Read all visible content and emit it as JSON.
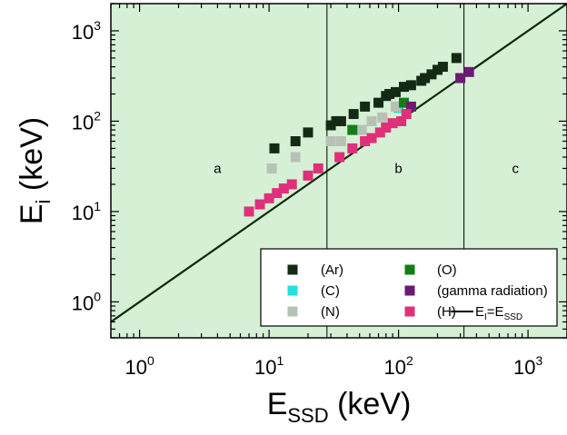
{
  "chart_data": {
    "type": "scatter",
    "xscale": "log",
    "yscale": "log",
    "xlim": [
      0.6,
      2000
    ],
    "ylim": [
      0.4,
      2000
    ],
    "grid": false,
    "background_color": "#d6f0d6",
    "xlabel": {
      "main": "E",
      "sub": "SSD",
      "rest": " (keV)"
    },
    "ylabel": {
      "main": "E",
      "sub": "i",
      "rest": " (keV)"
    },
    "x_ticks": [
      {
        "value": 1,
        "base": "10",
        "exp": "0"
      },
      {
        "value": 10,
        "base": "10",
        "exp": "1"
      },
      {
        "value": 100,
        "base": "10",
        "exp": "2"
      },
      {
        "value": 1000,
        "base": "10",
        "exp": "3"
      }
    ],
    "y_ticks": [
      {
        "value": 1,
        "base": "10",
        "exp": "0"
      },
      {
        "value": 10,
        "base": "10",
        "exp": "1"
      },
      {
        "value": 100,
        "base": "10",
        "exp": "2"
      },
      {
        "value": 1000,
        "base": "10",
        "exp": "3"
      }
    ],
    "vertical_lines": [
      28,
      320
    ],
    "region_labels": [
      {
        "text": "a",
        "x": 4,
        "y": 30
      },
      {
        "text": "b",
        "x": 100,
        "y": 30
      },
      {
        "text": "c",
        "x": 800,
        "y": 30
      }
    ],
    "reference_line": {
      "label_main": "E",
      "label_sub": "I",
      "label_mid": "=E",
      "label_sub2": "SSD"
    },
    "legend": {
      "placement": "bottom-right",
      "columns": 2
    },
    "series": [
      {
        "name": "(Ar)",
        "color": "#152a15",
        "points": [
          [
            11,
            50
          ],
          [
            16,
            60
          ],
          [
            20,
            75
          ],
          [
            30,
            90
          ],
          [
            33,
            100
          ],
          [
            36,
            100
          ],
          [
            45,
            120
          ],
          [
            55,
            145
          ],
          [
            70,
            160
          ],
          [
            80,
            190
          ],
          [
            85,
            200
          ],
          [
            95,
            210
          ],
          [
            110,
            240
          ],
          [
            125,
            250
          ],
          [
            150,
            280
          ],
          [
            160,
            300
          ],
          [
            180,
            330
          ],
          [
            200,
            370
          ],
          [
            220,
            400
          ],
          [
            280,
            500
          ]
        ]
      },
      {
        "name": "(C)",
        "color": "#22e0e0",
        "points": [
          [
            100,
            140
          ]
        ]
      },
      {
        "name": "(N)",
        "color": "#b7c2b7",
        "points": [
          [
            10.5,
            30
          ],
          [
            16,
            40
          ],
          [
            30,
            60
          ],
          [
            36,
            60
          ],
          [
            47,
            80
          ],
          [
            52,
            80
          ],
          [
            62,
            100
          ],
          [
            75,
            110
          ],
          [
            95,
            145
          ]
        ]
      },
      {
        "name": "(O)",
        "color": "#167c16",
        "points": [
          [
            44,
            80
          ],
          [
            110,
            160
          ]
        ]
      },
      {
        "name": "(gamma radiation)",
        "color": "#6b1a72",
        "points": [
          [
            125,
            145
          ],
          [
            300,
            300
          ],
          [
            350,
            350
          ]
        ]
      },
      {
        "name": "(H)",
        "color": "#e0307a",
        "points": [
          [
            7,
            10
          ],
          [
            8.5,
            12
          ],
          [
            10,
            14
          ],
          [
            11.5,
            16
          ],
          [
            13,
            18
          ],
          [
            15,
            20
          ],
          [
            20,
            25
          ],
          [
            24,
            30
          ],
          [
            35,
            40
          ],
          [
            44,
            50
          ],
          [
            55,
            60
          ],
          [
            62,
            65
          ],
          [
            72,
            75
          ],
          [
            80,
            85
          ],
          [
            90,
            95
          ],
          [
            105,
            100
          ],
          [
            115,
            120
          ]
        ]
      }
    ]
  }
}
